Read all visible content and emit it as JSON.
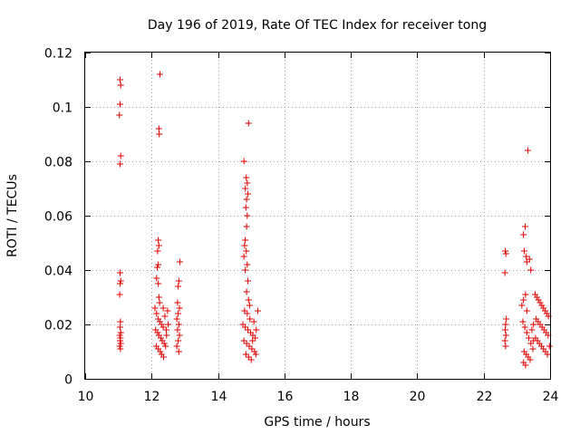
{
  "chart_data": {
    "type": "scatter",
    "title": "Day 196 of 2019, Rate Of TEC Index for receiver tong",
    "xlabel": "GPS time / hours",
    "ylabel": "ROTI / TECUs",
    "xlim": [
      10,
      24
    ],
    "ylim": [
      0,
      0.12
    ],
    "xticks": [
      10,
      12,
      14,
      16,
      18,
      20,
      22,
      24
    ],
    "yticks": [
      0,
      0.02,
      0.04,
      0.06,
      0.08,
      0.1,
      0.12
    ],
    "xtick_labels": [
      "10",
      "12",
      "14",
      "16",
      "18",
      "20",
      "22",
      "24"
    ],
    "ytick_labels": [
      "0",
      "0.02",
      "0.04",
      "0.06",
      "0.08",
      "0.1",
      "0.12"
    ],
    "grid": true,
    "marker": "+",
    "color": "#e00000",
    "series": [
      {
        "name": "ROTI",
        "points": [
          [
            11.05,
            0.11
          ],
          [
            11.07,
            0.108
          ],
          [
            11.05,
            0.101
          ],
          [
            11.03,
            0.097
          ],
          [
            11.07,
            0.082
          ],
          [
            11.05,
            0.079
          ],
          [
            11.05,
            0.039
          ],
          [
            11.07,
            0.036
          ],
          [
            11.05,
            0.035
          ],
          [
            11.04,
            0.031
          ],
          [
            11.06,
            0.021
          ],
          [
            11.05,
            0.019
          ],
          [
            11.07,
            0.017
          ],
          [
            11.04,
            0.016
          ],
          [
            11.06,
            0.015
          ],
          [
            11.05,
            0.014
          ],
          [
            11.07,
            0.013
          ],
          [
            11.04,
            0.012
          ],
          [
            11.06,
            0.011
          ],
          [
            12.25,
            0.112
          ],
          [
            12.22,
            0.092
          ],
          [
            12.23,
            0.09
          ],
          [
            12.2,
            0.051
          ],
          [
            12.22,
            0.049
          ],
          [
            12.18,
            0.047
          ],
          [
            12.2,
            0.042
          ],
          [
            12.17,
            0.041
          ],
          [
            12.15,
            0.037
          ],
          [
            12.2,
            0.035
          ],
          [
            12.22,
            0.03
          ],
          [
            12.24,
            0.028
          ],
          [
            12.1,
            0.026
          ],
          [
            12.15,
            0.024
          ],
          [
            12.2,
            0.022
          ],
          [
            12.25,
            0.021
          ],
          [
            12.3,
            0.02
          ],
          [
            12.35,
            0.019
          ],
          [
            12.12,
            0.018
          ],
          [
            12.18,
            0.017
          ],
          [
            12.22,
            0.016
          ],
          [
            12.28,
            0.015
          ],
          [
            12.32,
            0.014
          ],
          [
            12.38,
            0.013
          ],
          [
            12.14,
            0.012
          ],
          [
            12.2,
            0.011
          ],
          [
            12.26,
            0.01
          ],
          [
            12.3,
            0.009
          ],
          [
            12.36,
            0.008
          ],
          [
            12.42,
            0.012
          ],
          [
            12.45,
            0.016
          ],
          [
            12.5,
            0.02
          ],
          [
            12.4,
            0.023
          ],
          [
            12.48,
            0.025
          ],
          [
            12.35,
            0.026
          ],
          [
            12.44,
            0.018
          ],
          [
            12.85,
            0.043
          ],
          [
            12.82,
            0.036
          ],
          [
            12.8,
            0.034
          ],
          [
            12.78,
            0.028
          ],
          [
            12.84,
            0.026
          ],
          [
            12.8,
            0.024
          ],
          [
            12.76,
            0.022
          ],
          [
            12.82,
            0.02
          ],
          [
            12.78,
            0.018
          ],
          [
            12.84,
            0.016
          ],
          [
            12.8,
            0.014
          ],
          [
            12.76,
            0.012
          ],
          [
            12.82,
            0.01
          ],
          [
            14.92,
            0.094
          ],
          [
            14.78,
            0.08
          ],
          [
            14.85,
            0.074
          ],
          [
            14.88,
            0.072
          ],
          [
            14.82,
            0.07
          ],
          [
            14.9,
            0.068
          ],
          [
            14.86,
            0.066
          ],
          [
            14.84,
            0.063
          ],
          [
            14.88,
            0.06
          ],
          [
            14.86,
            0.056
          ],
          [
            14.82,
            0.051
          ],
          [
            14.8,
            0.049
          ],
          [
            14.85,
            0.047
          ],
          [
            14.78,
            0.045
          ],
          [
            14.88,
            0.042
          ],
          [
            14.82,
            0.04
          ],
          [
            14.9,
            0.036
          ],
          [
            14.86,
            0.032
          ],
          [
            14.92,
            0.029
          ],
          [
            14.95,
            0.027
          ],
          [
            14.8,
            0.025
          ],
          [
            14.88,
            0.024
          ],
          [
            14.75,
            0.02
          ],
          [
            14.82,
            0.019
          ],
          [
            14.9,
            0.018
          ],
          [
            14.98,
            0.017
          ],
          [
            15.05,
            0.016
          ],
          [
            15.12,
            0.015
          ],
          [
            14.78,
            0.014
          ],
          [
            14.86,
            0.013
          ],
          [
            14.94,
            0.012
          ],
          [
            15.02,
            0.011
          ],
          [
            15.1,
            0.01
          ],
          [
            14.84,
            0.009
          ],
          [
            14.92,
            0.008
          ],
          [
            15.0,
            0.007
          ],
          [
            15.08,
            0.021
          ],
          [
            15.15,
            0.018
          ],
          [
            15.2,
            0.025
          ],
          [
            14.96,
            0.022
          ],
          [
            15.04,
            0.014
          ],
          [
            15.14,
            0.009
          ],
          [
            22.65,
            0.047
          ],
          [
            22.67,
            0.046
          ],
          [
            22.64,
            0.039
          ],
          [
            22.68,
            0.022
          ],
          [
            22.66,
            0.02
          ],
          [
            22.65,
            0.018
          ],
          [
            22.67,
            0.016
          ],
          [
            22.64,
            0.014
          ],
          [
            22.66,
            0.012
          ],
          [
            23.25,
            0.056
          ],
          [
            23.2,
            0.053
          ],
          [
            23.22,
            0.047
          ],
          [
            23.28,
            0.045
          ],
          [
            23.3,
            0.043
          ],
          [
            23.33,
            0.084
          ],
          [
            23.38,
            0.044
          ],
          [
            23.42,
            0.04
          ],
          [
            23.26,
            0.031
          ],
          [
            23.2,
            0.029
          ],
          [
            23.15,
            0.027
          ],
          [
            23.3,
            0.025
          ],
          [
            23.18,
            0.021
          ],
          [
            23.24,
            0.019
          ],
          [
            23.3,
            0.017
          ],
          [
            23.36,
            0.015
          ],
          [
            23.42,
            0.013
          ],
          [
            23.48,
            0.011
          ],
          [
            23.22,
            0.01
          ],
          [
            23.28,
            0.009
          ],
          [
            23.34,
            0.008
          ],
          [
            23.4,
            0.007
          ],
          [
            23.2,
            0.006
          ],
          [
            23.26,
            0.005
          ],
          [
            23.55,
            0.031
          ],
          [
            23.6,
            0.03
          ],
          [
            23.65,
            0.029
          ],
          [
            23.7,
            0.028
          ],
          [
            23.75,
            0.027
          ],
          [
            23.8,
            0.026
          ],
          [
            23.85,
            0.025
          ],
          [
            23.9,
            0.024
          ],
          [
            23.95,
            0.023
          ],
          [
            23.58,
            0.022
          ],
          [
            23.64,
            0.021
          ],
          [
            23.7,
            0.02
          ],
          [
            23.76,
            0.019
          ],
          [
            23.82,
            0.018
          ],
          [
            23.88,
            0.017
          ],
          [
            23.94,
            0.016
          ],
          [
            23.56,
            0.015
          ],
          [
            23.62,
            0.014
          ],
          [
            23.68,
            0.013
          ],
          [
            23.74,
            0.012
          ],
          [
            23.8,
            0.011
          ],
          [
            23.86,
            0.01
          ],
          [
            23.92,
            0.009
          ],
          [
            23.98,
            0.012
          ],
          [
            23.5,
            0.02
          ],
          [
            23.45,
            0.018
          ],
          [
            23.5,
            0.014
          ]
        ]
      }
    ]
  }
}
